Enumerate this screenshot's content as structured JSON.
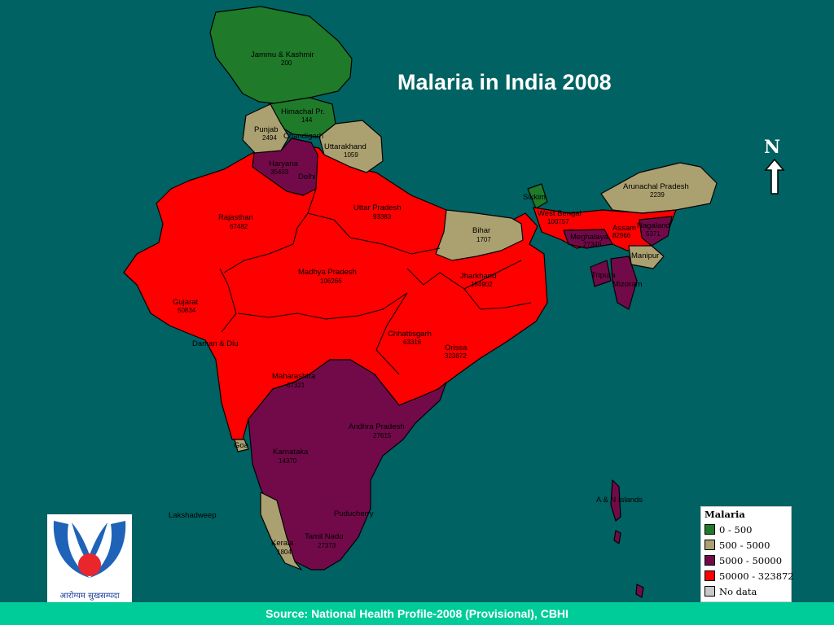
{
  "title": "Malaria in India 2008",
  "north_label": "N",
  "footer": "Source: National Health Profile-2008 (Provisional), CBHI",
  "logo_text": "आरोग्यम सुखसम्पदा",
  "colors": {
    "background": "#006262",
    "green": "#1f7a2a",
    "khaki": "#aba070",
    "purple": "#720a4a",
    "red": "#ff0000",
    "footer": "#00cc99"
  },
  "legend": {
    "title": "Malaria",
    "items": [
      {
        "label": "0 - 500",
        "color": "#1f7a2a"
      },
      {
        "label": "500 - 5000",
        "color": "#aba070"
      },
      {
        "label": "5000 - 50000",
        "color": "#720a4a"
      },
      {
        "label": "50000 - 323872",
        "color": "#ff0000"
      },
      {
        "label": "No data",
        "color": "#c8c8c8"
      }
    ]
  },
  "regions": {
    "jk": {
      "name": "Jammu & Kashmir",
      "value": "200"
    },
    "hp": {
      "name": "Himachal Pr.",
      "value": "144"
    },
    "punjab": {
      "name": "Punjab",
      "value": "2494"
    },
    "chandigarh": {
      "name": "Chandigarh"
    },
    "uttarakhand": {
      "name": "Uttarakhand",
      "value": "1059"
    },
    "haryana": {
      "name": "Haryana",
      "value": "35403"
    },
    "delhi": {
      "name": "Delhi"
    },
    "rajasthan": {
      "name": "Rajasthan",
      "value": "67482"
    },
    "up": {
      "name": "Uttar Pradesh",
      "value": "93383"
    },
    "bihar": {
      "name": "Bihar",
      "value": "1707"
    },
    "sikkim": {
      "name": "Sikkim"
    },
    "wb": {
      "name": "West Bengal",
      "value": "100757"
    },
    "arunachal": {
      "name": "Arunachal Pradesh",
      "value": "2239"
    },
    "assam": {
      "name": "Assam",
      "value": "82966"
    },
    "nagaland": {
      "name": "Nagaland",
      "value": "5371"
    },
    "meghalaya": {
      "name": "Meghalaya",
      "value": "27349"
    },
    "manipur": {
      "name": "Manipur"
    },
    "tripura": {
      "name": "Tripura"
    },
    "mizoram": {
      "name": "Mizoram"
    },
    "mp": {
      "name": "Madhya Pradesh",
      "value": "106266"
    },
    "jharkhand": {
      "name": "Jharkhand",
      "value": "184902"
    },
    "gujarat": {
      "name": "Gujarat",
      "value": "50834"
    },
    "daman": {
      "name": "Daman & Diu"
    },
    "chhattisgarh": {
      "name": "Chhattisgarh",
      "value": "63316"
    },
    "orissa": {
      "name": "Orissa",
      "value": "323872"
    },
    "maharashtra": {
      "name": "Maharashtra",
      "value": "67321"
    },
    "ap": {
      "name": "Andhra Pradesh",
      "value": "27615"
    },
    "goa": {
      "name": "Goa"
    },
    "karnataka": {
      "name": "Karnataka",
      "value": "14370"
    },
    "kerala": {
      "name": "Kerala",
      "value": "1804"
    },
    "tn": {
      "name": "Tamil Nadu",
      "value": "27373"
    },
    "puducherry": {
      "name": "Puducherry"
    },
    "lakshadweep": {
      "name": "Lakshadweep"
    },
    "andaman": {
      "name": "A & N Islands"
    }
  }
}
